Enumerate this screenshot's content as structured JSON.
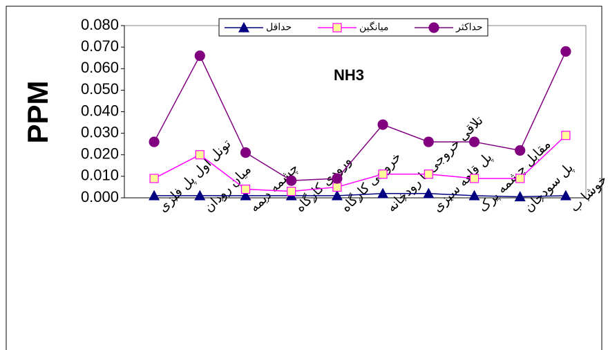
{
  "chart_data": {
    "type": "line",
    "title": "NH3",
    "y_label": "PPM",
    "categories": [
      "تونل اول پل فلزی",
      "میان رودان",
      "چشمه دیمه",
      "ورودی کارگاه",
      "خروجی کارگاه",
      "تلاقی خروجی با رودخانه",
      "پل قلعه سبزی",
      "مقابل چشمه پرک",
      "پل سودجان",
      "خوشا ب"
    ],
    "series": [
      {
        "name": "حداقل",
        "color": "#000080",
        "marker": "triangle",
        "marker_fill": "#000080",
        "values": [
          0.001,
          0.001,
          0.001,
          0.001,
          0.001,
          0.002,
          0.002,
          0.001,
          0.0005,
          0.001
        ]
      },
      {
        "name": "میانگین",
        "color": "#ff00ff",
        "marker": "square",
        "marker_fill": "#ffff99",
        "values": [
          0.009,
          0.02,
          0.004,
          0.003,
          0.005,
          0.011,
          0.011,
          0.009,
          0.009,
          0.029
        ]
      },
      {
        "name": "حداکثر",
        "color": "#800080",
        "marker": "circle",
        "marker_fill": "#800080",
        "values": [
          0.026,
          0.066,
          0.021,
          0.008,
          0.009,
          0.034,
          0.026,
          0.026,
          0.022,
          0.068
        ]
      }
    ],
    "ylim": [
      0,
      0.08
    ],
    "yticks": [
      {
        "value": 0,
        "label": "0.000"
      },
      {
        "value": 0.01,
        "label": "0.010"
      },
      {
        "value": 0.02,
        "label": "0.020"
      },
      {
        "value": 0.03,
        "label": "0.030"
      },
      {
        "value": 0.04,
        "label": "0.040"
      },
      {
        "value": 0.05,
        "label": "0.050"
      },
      {
        "value": 0.06,
        "label": "0.060"
      },
      {
        "value": 0.07,
        "label": "0.070"
      },
      {
        "value": 0.08,
        "label": "0.080"
      }
    ],
    "legend": "top"
  }
}
